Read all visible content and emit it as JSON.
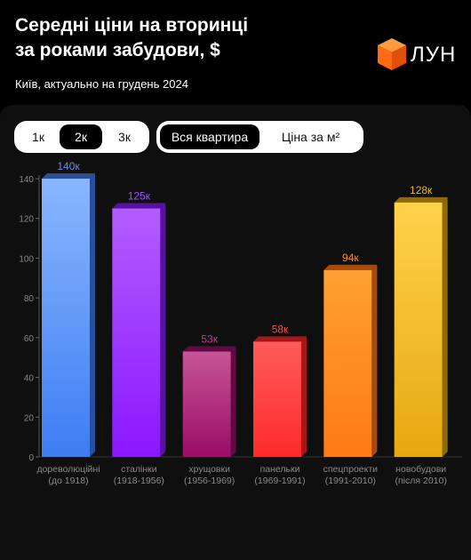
{
  "header": {
    "title_line1": "Середні ціни на вторинці",
    "title_line2": "за роками забудови, $",
    "subtitle": "Київ, актуально на грудень 2024",
    "logo_text": "ЛУН"
  },
  "controls": {
    "rooms": [
      {
        "label": "1к",
        "active": false
      },
      {
        "label": "2к",
        "active": true
      },
      {
        "label": "3к",
        "active": false
      }
    ],
    "mode": [
      {
        "label": "Вся квартира",
        "active": true
      },
      {
        "label": "Ціна за м²",
        "active": false
      }
    ]
  },
  "colors": {
    "accent": "#ff6a13",
    "background": "#000000",
    "panel": "#0f0f0f"
  },
  "chart_data": {
    "type": "bar",
    "title": "",
    "xlabel": "",
    "ylabel": "",
    "ylim": [
      0,
      140
    ],
    "yticks": [
      0,
      20,
      40,
      60,
      80,
      100,
      120,
      140
    ],
    "grid": false,
    "categories": [
      {
        "line1": "дореволюційні",
        "line2": "(до 1918)"
      },
      {
        "line1": "сталінки",
        "line2": "(1918-1956)"
      },
      {
        "line1": "хрущовки",
        "line2": "(1956-1969)"
      },
      {
        "line1": "панельки",
        "line2": "(1969-1991)"
      },
      {
        "line1": "спецпроекти",
        "line2": "(1991-2010)"
      },
      {
        "line1": "новобудови",
        "line2": "(після 2010)"
      }
    ],
    "values": [
      140,
      125,
      53,
      58,
      94,
      128
    ],
    "value_labels": [
      "140к",
      "125к",
      "53к",
      "58к",
      "94к",
      "128к"
    ],
    "bar_colors": [
      {
        "top": "#8ab6ff",
        "bottom": "#3d7df2",
        "side": "#2a4f9a",
        "label": "#5d8ff5"
      },
      {
        "top": "#b45cff",
        "bottom": "#8a17ff",
        "side": "#5a0fa8",
        "label": "#a34dff"
      },
      {
        "top": "#c65594",
        "bottom": "#9a0c68",
        "side": "#640845",
        "label": "#b83a85"
      },
      {
        "top": "#ff5a5a",
        "bottom": "#ff2a2a",
        "side": "#a81717",
        "label": "#ff4848"
      },
      {
        "top": "#ffa033",
        "bottom": "#ff7a14",
        "side": "#a84a08",
        "label": "#ff8c22"
      },
      {
        "top": "#ffd24a",
        "bottom": "#e6a812",
        "side": "#8f6a06",
        "label": "#f5b520"
      }
    ]
  }
}
